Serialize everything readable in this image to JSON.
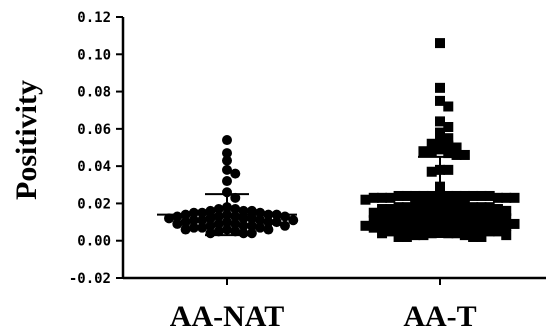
{
  "chart_data": {
    "type": "scatter",
    "ylabel": "Positivity",
    "xlabel": "",
    "ylim": [
      -0.02,
      0.12
    ],
    "yticks": [
      "-0.02",
      "0.00",
      "0.02",
      "0.04",
      "0.06",
      "0.08",
      "0.10",
      "0.12"
    ],
    "yticks_values": [
      -0.02,
      0.0,
      0.02,
      0.04,
      0.06,
      0.08,
      0.1,
      0.12
    ],
    "categories": [
      "AA-NAT",
      "AA-T"
    ],
    "series": [
      {
        "category": "AA-NAT",
        "marker": "circle",
        "mean": 0.014,
        "sd_upper": 0.025,
        "sd_lower": 0.003,
        "values": [
          0.054,
          0.047,
          0.043,
          0.038,
          0.036,
          0.032,
          0.026,
          0.023,
          0.018,
          0.017,
          0.017,
          0.016,
          0.016,
          0.016,
          0.015,
          0.015,
          0.015,
          0.014,
          0.014,
          0.014,
          0.014,
          0.013,
          0.013,
          0.013,
          0.013,
          0.012,
          0.012,
          0.012,
          0.012,
          0.011,
          0.011,
          0.011,
          0.011,
          0.01,
          0.01,
          0.01,
          0.01,
          0.009,
          0.009,
          0.009,
          0.008,
          0.008,
          0.008,
          0.008,
          0.007,
          0.007,
          0.007,
          0.006,
          0.006,
          0.006,
          0.005,
          0.005,
          0.004,
          0.004,
          0.004
        ]
      },
      {
        "category": "AA-T",
        "marker": "square",
        "mean": 0.017,
        "sd_upper": 0.045,
        "sd_lower": 0.002,
        "values": [
          0.106,
          0.082,
          0.075,
          0.072,
          0.064,
          0.061,
          0.058,
          0.055,
          0.053,
          0.052,
          0.051,
          0.05,
          0.049,
          0.048,
          0.048,
          0.047,
          0.046,
          0.046,
          0.038,
          0.038,
          0.037,
          0.029,
          0.024,
          0.024,
          0.024,
          0.024,
          0.024,
          0.024,
          0.024,
          0.024,
          0.024,
          0.024,
          0.024,
          0.024,
          0.023,
          0.023,
          0.023,
          0.023,
          0.023,
          0.023,
          0.022,
          0.022,
          0.022,
          0.022,
          0.021,
          0.021,
          0.021,
          0.02,
          0.02,
          0.02,
          0.019,
          0.019,
          0.019,
          0.018,
          0.018,
          0.018,
          0.018,
          0.018,
          0.017,
          0.017,
          0.017,
          0.017,
          0.016,
          0.016,
          0.016,
          0.016,
          0.015,
          0.015,
          0.015,
          0.015,
          0.014,
          0.014,
          0.014,
          0.014,
          0.014,
          0.013,
          0.013,
          0.013,
          0.013,
          0.012,
          0.012,
          0.012,
          0.012,
          0.011,
          0.011,
          0.011,
          0.011,
          0.01,
          0.01,
          0.01,
          0.01,
          0.01,
          0.009,
          0.009,
          0.009,
          0.009,
          0.009,
          0.008,
          0.008,
          0.008,
          0.008,
          0.008,
          0.007,
          0.007,
          0.007,
          0.007,
          0.006,
          0.006,
          0.006,
          0.006,
          0.005,
          0.005,
          0.005,
          0.005,
          0.004,
          0.004,
          0.004,
          0.004,
          0.003,
          0.003,
          0.003,
          0.003,
          0.002,
          0.002,
          0.002,
          0.002
        ]
      }
    ]
  }
}
